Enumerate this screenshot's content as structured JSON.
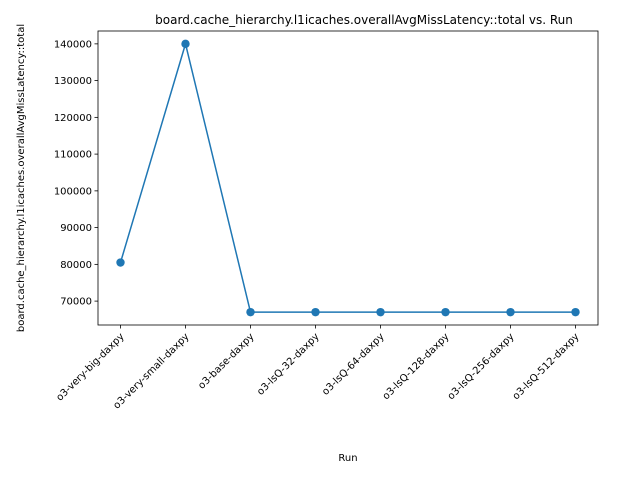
{
  "chart_data": {
    "type": "line",
    "title": "board.cache_hierarchy.l1icaches.overallAvgMissLatency::total vs. Run",
    "xlabel": "Run",
    "ylabel": "board.cache_hierarchy.l1icaches.overallAvgMissLatency::total",
    "categories": [
      "o3-very-big-daxpy",
      "o3-very-small-daxpy",
      "o3-base-daxpy",
      "o3-lsQ-32-daxpy",
      "o3-lsQ-64-daxpy",
      "o3-lsQ-128-daxpy",
      "o3-lsQ-256-daxpy",
      "o3-lsQ-512-daxpy"
    ],
    "values": [
      80500,
      140000,
      67000,
      67000,
      67000,
      67000,
      67000,
      67000
    ],
    "ylim": [
      63500,
      143500
    ],
    "yticks": [
      70000,
      80000,
      90000,
      100000,
      110000,
      120000,
      130000,
      140000
    ],
    "grid": false,
    "marker": "circle",
    "colors": {
      "series": "#1f77b4",
      "axes": "#000000"
    }
  }
}
